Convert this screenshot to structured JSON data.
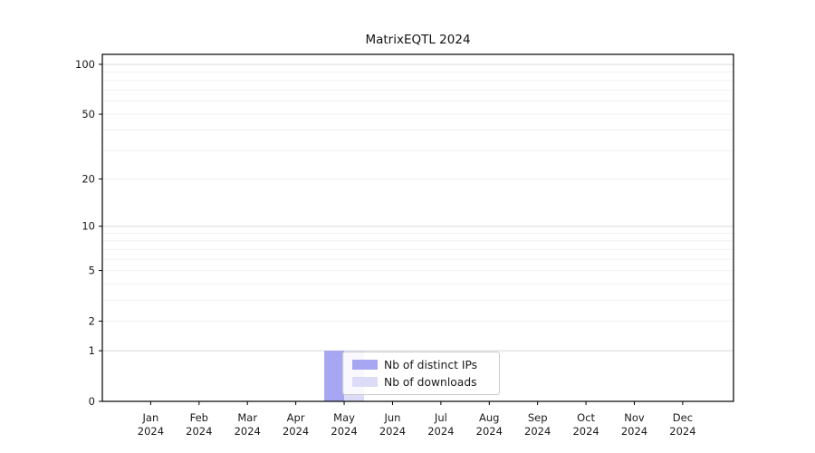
{
  "chart_data": {
    "type": "bar",
    "title": "MatrixEQTL 2024",
    "categories": [
      "Jan",
      "Feb",
      "Mar",
      "Apr",
      "May",
      "Jun",
      "Jul",
      "Aug",
      "Sep",
      "Oct",
      "Nov",
      "Dec"
    ],
    "year_label": "2024",
    "series": [
      {
        "name": "Nb of distinct IPs",
        "color": "#a6a6f2",
        "values": [
          0,
          0,
          0,
          0,
          1,
          0,
          0,
          0,
          0,
          0,
          0,
          0
        ]
      },
      {
        "name": "Nb of downloads",
        "color": "#dcdcf8",
        "values": [
          0,
          0,
          0,
          0,
          1,
          0,
          0,
          0,
          0,
          0,
          0,
          0
        ]
      }
    ],
    "xlabel": "",
    "ylabel": "",
    "yscale": "log1p",
    "ylim": [
      0,
      115
    ],
    "yticks": [
      0,
      1,
      2,
      5,
      10,
      20,
      50,
      100
    ],
    "major_gridlines": [
      1,
      10,
      100
    ],
    "minor_gridlines": [
      2,
      3,
      4,
      5,
      6,
      7,
      8,
      9,
      20,
      30,
      40,
      50,
      60,
      70,
      80,
      90
    ],
    "grid": true,
    "legend_position": "lower center (over May-Jul)",
    "colors": {
      "axis": "#000000",
      "tick_label": "#1a1a1a",
      "major_grid": "#d8d8d8",
      "minor_grid": "#f1f1f1",
      "background": "#ffffff",
      "legend_border": "#cccccc"
    }
  }
}
